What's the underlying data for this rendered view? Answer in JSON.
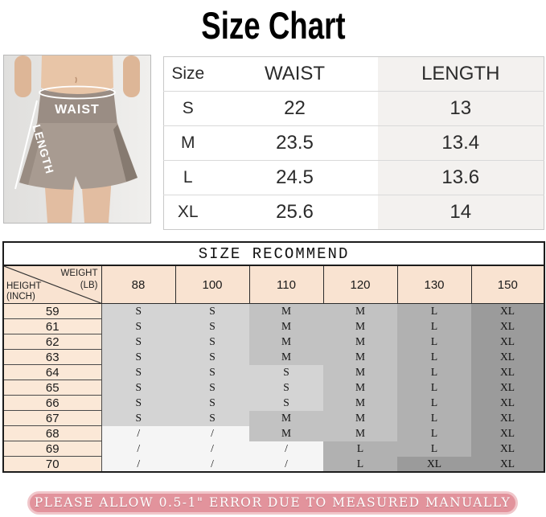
{
  "title": "Size Chart",
  "photo": {
    "waist_label": "WAIST",
    "length_label": "LENGTH"
  },
  "size_table": {
    "columns": [
      "Size",
      "WAIST",
      "LENGTH"
    ],
    "rows": [
      {
        "size": "S",
        "waist": "22",
        "length": "13"
      },
      {
        "size": "M",
        "waist": "23.5",
        "length": "13.4"
      },
      {
        "size": "L",
        "waist": "24.5",
        "length": "13.6"
      },
      {
        "size": "XL",
        "waist": "25.6",
        "length": "14"
      }
    ]
  },
  "recommend_table": {
    "title": "SIZE RECOMMEND",
    "corner": {
      "weight": "WEIGHT",
      "weight_unit": "(LB)",
      "height": "HEIGHT",
      "height_unit": "(INCH)"
    },
    "weight_columns": [
      "88",
      "100",
      "110",
      "120",
      "130",
      "150"
    ],
    "rows": [
      {
        "height": "59",
        "values": [
          "S",
          "S",
          "M",
          "M",
          "L",
          "XL"
        ]
      },
      {
        "height": "61",
        "values": [
          "S",
          "S",
          "M",
          "M",
          "L",
          "XL"
        ]
      },
      {
        "height": "62",
        "values": [
          "S",
          "S",
          "M",
          "M",
          "L",
          "XL"
        ]
      },
      {
        "height": "63",
        "values": [
          "S",
          "S",
          "M",
          "M",
          "L",
          "XL"
        ]
      },
      {
        "height": "64",
        "values": [
          "S",
          "S",
          "S",
          "M",
          "L",
          "XL"
        ]
      },
      {
        "height": "65",
        "values": [
          "S",
          "S",
          "S",
          "M",
          "L",
          "XL"
        ]
      },
      {
        "height": "66",
        "values": [
          "S",
          "S",
          "S",
          "M",
          "L",
          "XL"
        ]
      },
      {
        "height": "67",
        "values": [
          "S",
          "S",
          "M",
          "M",
          "L",
          "XL"
        ]
      },
      {
        "height": "68",
        "values": [
          "/",
          "/",
          "M",
          "M",
          "L",
          "XL"
        ]
      },
      {
        "height": "69",
        "values": [
          "/",
          "/",
          "/",
          "L",
          "L",
          "XL"
        ]
      },
      {
        "height": "70",
        "values": [
          "/",
          "/",
          "/",
          "L",
          "XL",
          "XL"
        ]
      }
    ]
  },
  "footer": {
    "note": "PLEASE ALLOW 0.5-1\" ERROR DUE TO MEASURED MANUALLY"
  },
  "colors": {
    "header_peach": "#f9e3d1",
    "height_col_peach": "#fbe8d7",
    "banner_pink": "#e2939c",
    "banner_border_pink": "#f0c6ca",
    "length_col_tint": "#f3f1ef",
    "cell_shade_s": "#d4d4d4",
    "cell_shade_m": "#c2c2c2",
    "cell_shade_l": "#b1b1b1",
    "cell_shade_xl": "#9b9b9b",
    "cell_shade_none": "#f5f5f5",
    "shorts_taupe": "#a89b91",
    "photo_bg": "#e6e5e3"
  }
}
